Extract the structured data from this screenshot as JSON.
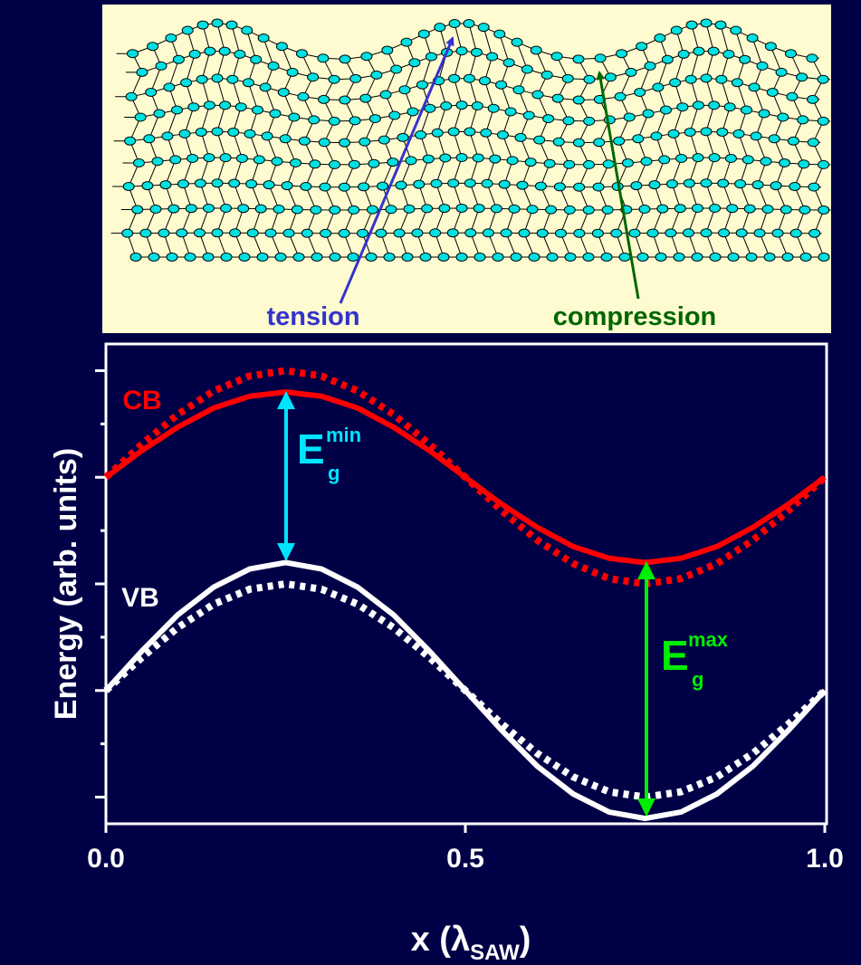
{
  "chart_data": {
    "type": "line",
    "diagram_labels": {
      "tension": "tension",
      "compression": "compression"
    },
    "x_label": {
      "text": "x (λ",
      "sub": "SAW",
      "end": ")"
    },
    "y_label": "Energy (arb. units)",
    "annotations": {
      "cb": "CB",
      "vb": "VB",
      "eg_min": {
        "base": "E",
        "sub": "g",
        "sup": "min"
      },
      "eg_max": {
        "base": "E",
        "sub": "g",
        "sup": "max"
      }
    },
    "x": [
      0,
      0.05,
      0.1,
      0.15,
      0.2,
      0.25,
      0.3,
      0.35,
      0.4,
      0.45,
      0.5,
      0.55,
      0.6,
      0.65,
      0.7,
      0.75,
      0.8,
      0.85,
      0.9,
      0.95,
      1
    ],
    "series": [
      {
        "color": "#ff0000",
        "dashed": true,
        "values": [
          3,
          3.31,
          3.59,
          3.81,
          3.95,
          4,
          3.95,
          3.81,
          3.59,
          3.31,
          3,
          2.69,
          2.41,
          2.19,
          2.05,
          2,
          2.05,
          2.19,
          2.41,
          2.69,
          3
        ]
      },
      {
        "color": "#ff0000",
        "dashed": false,
        "values": [
          3,
          3.25,
          3.47,
          3.65,
          3.76,
          3.8,
          3.76,
          3.65,
          3.47,
          3.25,
          3,
          2.75,
          2.53,
          2.35,
          2.24,
          2.2,
          2.24,
          2.35,
          2.53,
          2.75,
          3
        ]
      },
      {
        "color": "#ffffff",
        "dashed": true,
        "values": [
          1,
          1.31,
          1.59,
          1.81,
          1.95,
          2,
          1.95,
          1.81,
          1.59,
          1.31,
          1,
          0.69,
          0.41,
          0.19,
          0.05,
          0,
          0.05,
          0.19,
          0.41,
          0.69,
          1
        ]
      },
      {
        "color": "#ffffff",
        "dashed": false,
        "values": [
          1,
          1.37,
          1.71,
          1.97,
          2.14,
          2.2,
          2.14,
          1.97,
          1.71,
          1.37,
          1,
          0.63,
          0.29,
          0.03,
          -0.14,
          -0.2,
          -0.14,
          0.03,
          0.29,
          0.63,
          1
        ]
      }
    ],
    "xlim": [
      0,
      1
    ],
    "xticks": [
      {
        "value": 0,
        "label": "0.0"
      },
      {
        "value": 0.5,
        "label": "0.5"
      },
      {
        "value": 1,
        "label": "1.0"
      }
    ],
    "ylim": [
      -0.25,
      4.25
    ],
    "yticks": [
      0,
      0.5,
      1,
      1.5,
      2,
      2.5,
      3,
      3.5,
      4
    ]
  }
}
